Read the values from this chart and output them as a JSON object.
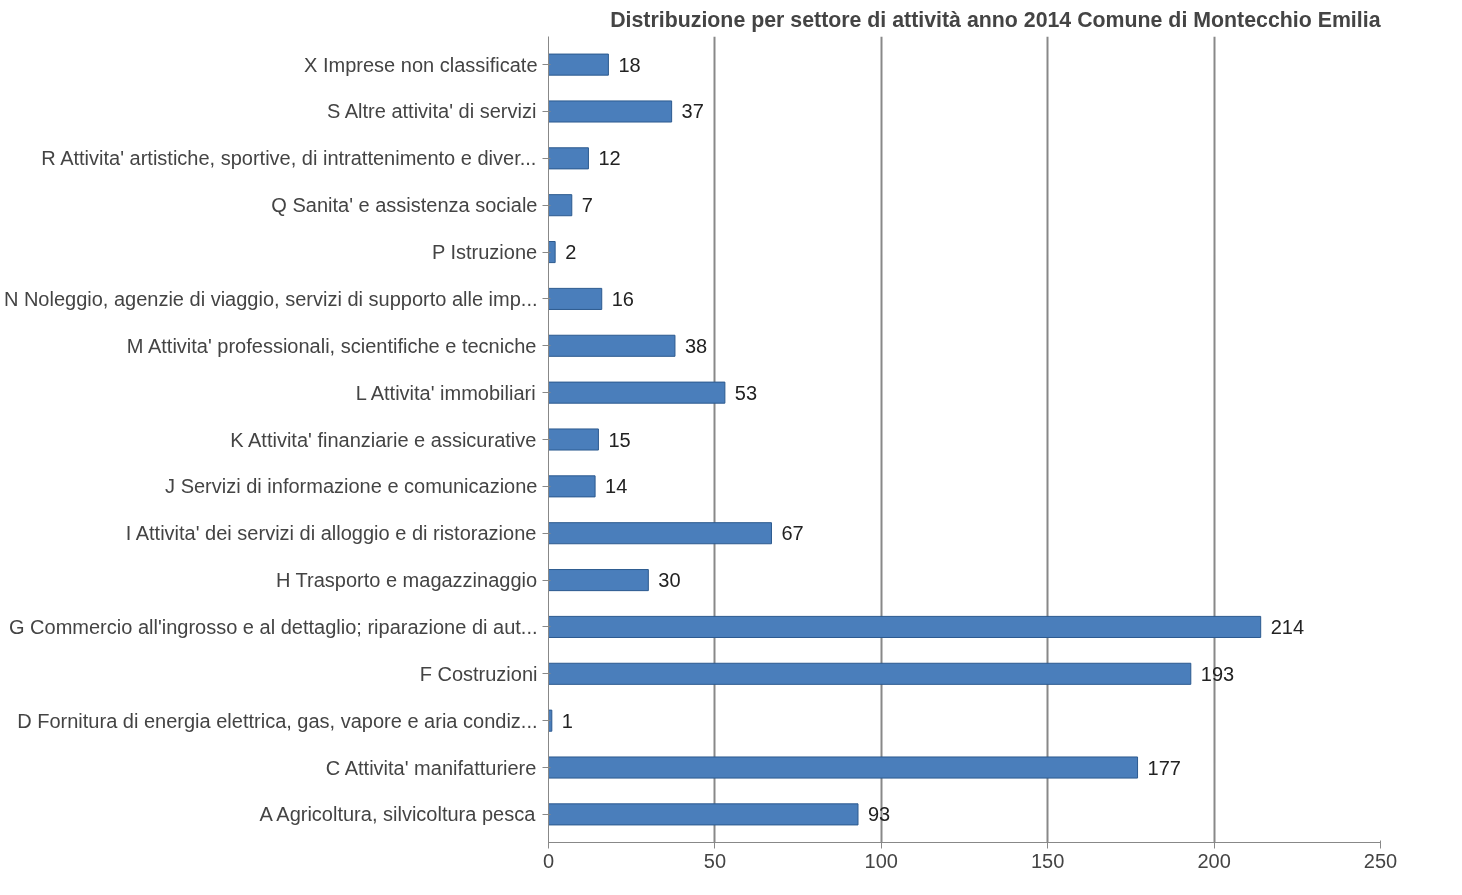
{
  "chart_data": {
    "type": "bar",
    "orientation": "horizontal",
    "title": "Distribuzione per settore di attività anno 2014 Comune di Montecchio Emilia",
    "categories": [
      "X Imprese non classificate",
      "S Altre attivita' di servizi",
      "R Attivita' artistiche, sportive, di intrattenimento e diver...",
      "Q Sanita' e assistenza sociale",
      "P Istruzione",
      "N Noleggio, agenzie di viaggio, servizi di supporto alle imp...",
      "M Attivita' professionali, scientifiche e tecniche",
      "L Attivita' immobiliari",
      "K Attivita' finanziarie e assicurative",
      "J Servizi di informazione e comunicazione",
      "I Attivita' dei servizi di alloggio e di ristorazione",
      "H Trasporto e magazzinaggio",
      "G Commercio all'ingrosso e al dettaglio; riparazione di aut...",
      "F Costruzioni",
      "D Fornitura di energia elettrica, gas, vapore e aria condiz...",
      "C Attivita' manifatturiere",
      "A Agricoltura, silvicoltura pesca"
    ],
    "values": [
      18,
      37,
      12,
      7,
      2,
      16,
      38,
      53,
      15,
      14,
      67,
      30,
      214,
      193,
      1,
      177,
      93
    ],
    "color": "#4a7ebb",
    "xlim": [
      0,
      250
    ],
    "xticks": [
      0,
      50,
      100,
      150,
      200,
      250
    ],
    "grid": "x",
    "data_labels": true
  }
}
